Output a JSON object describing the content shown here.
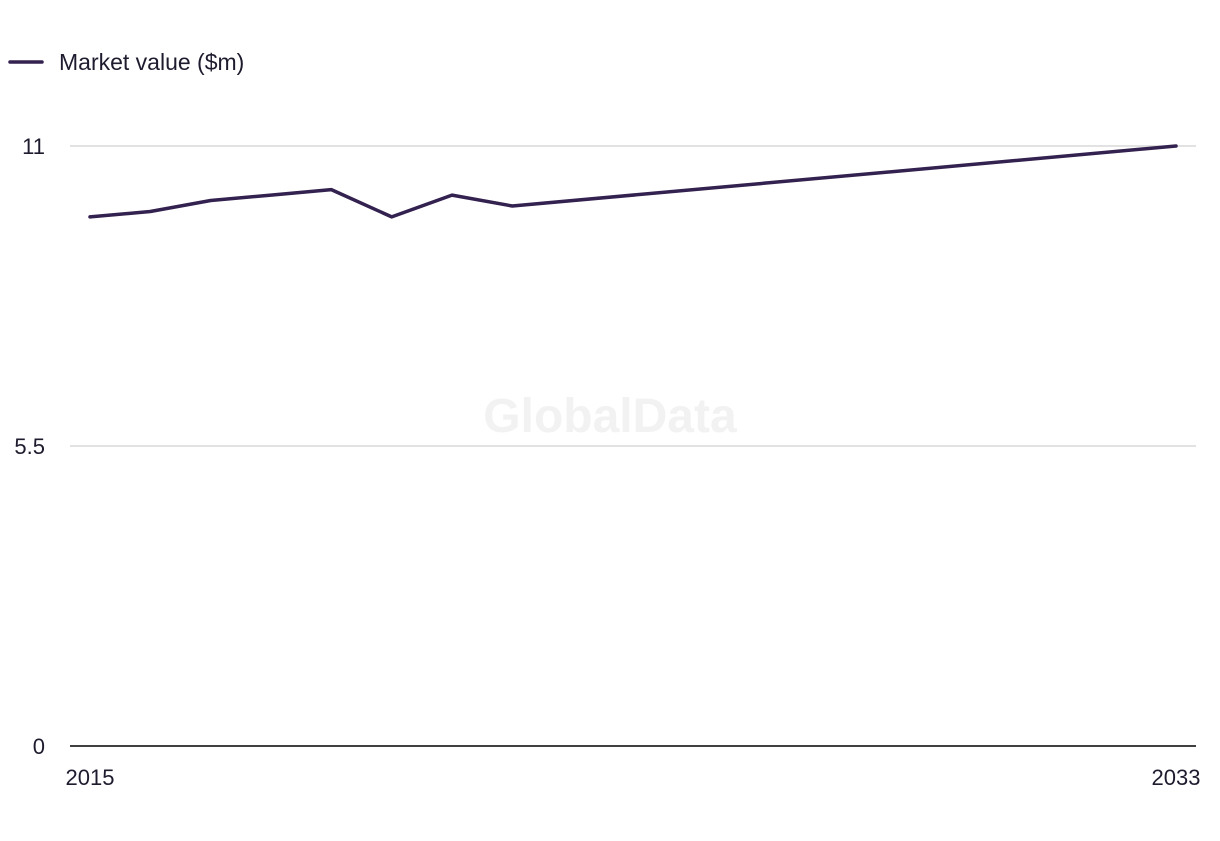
{
  "chart_data": {
    "type": "line",
    "title": "",
    "xlabel": "",
    "ylabel": "",
    "x": [
      2015,
      2016,
      2017,
      2018,
      2019,
      2020,
      2021,
      2022,
      2033
    ],
    "series": [
      {
        "name": "Market value ($m)",
        "values": [
          9.7,
          9.8,
          10.0,
          10.1,
          10.2,
          9.7,
          10.1,
          9.9,
          11.0
        ]
      }
    ],
    "x_tick_labels": [
      "2015",
      "2033"
    ],
    "y_ticks": [
      0,
      5.5,
      11
    ],
    "y_tick_labels": [
      "0",
      "5.5",
      "11"
    ],
    "xlim": [
      2015,
      2033
    ],
    "ylim": [
      0,
      11
    ],
    "grid": true,
    "legend_position": "top-left",
    "colors": {
      "series": "#33214f",
      "grid": "#d9d9d9",
      "axis": "#000000",
      "watermark": "#f2f2f2"
    },
    "watermark": "GlobalData"
  }
}
